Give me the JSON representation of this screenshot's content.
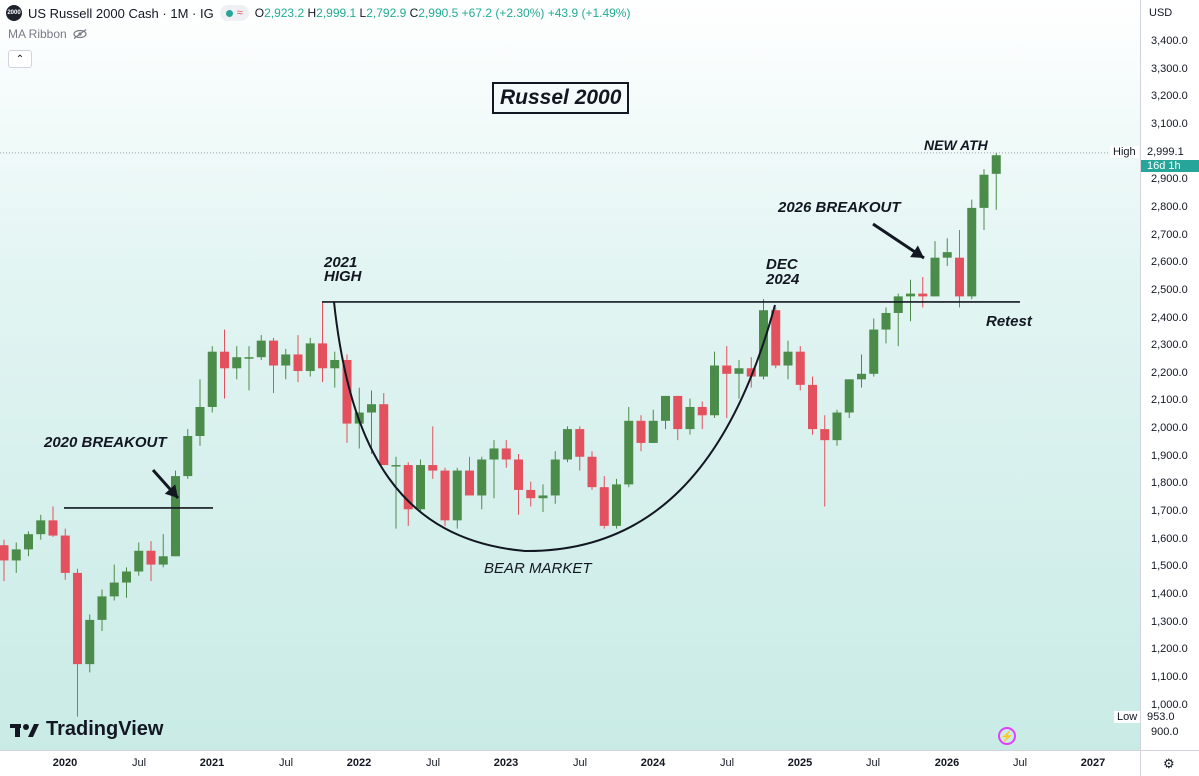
{
  "header": {
    "symbol_badge": "2000",
    "title": "US Russell 2000 Cash · 1M · IG",
    "ohlc": {
      "o_label": "O",
      "o": "2,923.2",
      "h_label": "H",
      "h": "2,999.1",
      "l_label": "L",
      "l": "2,792.9",
      "c_label": "C",
      "c": "2,990.5",
      "change": "+67.2 (+2.30%)",
      "change2": "+43.9 (+1.49%)"
    },
    "ma_ribbon": "MA Ribbon"
  },
  "price_axis": {
    "currency": "USD",
    "ticks": [
      "3,400.0",
      "3,300.0",
      "3,200.0",
      "3,100.0",
      "3,000.0",
      "2,900.0",
      "2,800.0",
      "2,700.0",
      "2,600.0",
      "2,500.0",
      "2,400.0",
      "2,300.0",
      "2,200.0",
      "2,100.0",
      "2,000.0",
      "1,900.0",
      "1,800.0",
      "1,700.0",
      "1,600.0",
      "1,500.0",
      "1,400.0",
      "1,300.0",
      "1,200.0",
      "1,100.0",
      "1,000.0",
      "900.0"
    ],
    "high_tag": "High",
    "high_value": "2,999.1",
    "timer": "16d 1h",
    "low_tag": "Low",
    "low_value": "953.0"
  },
  "time_axis": {
    "ticks": [
      {
        "label": "2020",
        "year": true
      },
      {
        "label": "Jul",
        "year": false
      },
      {
        "label": "2021",
        "year": true
      },
      {
        "label": "Jul",
        "year": false
      },
      {
        "label": "2022",
        "year": true
      },
      {
        "label": "Jul",
        "year": false
      },
      {
        "label": "2023",
        "year": true
      },
      {
        "label": "Jul",
        "year": false
      },
      {
        "label": "2024",
        "year": true
      },
      {
        "label": "Jul",
        "year": false
      },
      {
        "label": "2025",
        "year": true
      },
      {
        "label": "Jul",
        "year": false
      },
      {
        "label": "2026",
        "year": true
      },
      {
        "label": "Jul",
        "year": false
      },
      {
        "label": "2027",
        "year": true
      }
    ]
  },
  "annotations": {
    "title": "Russel 2000",
    "breakout_2020": "2020 BREAKOUT",
    "high_2021_line1": "2021",
    "high_2021_line2": "HIGH",
    "dec_2024_line1": "DEC",
    "dec_2024_line2": "2024",
    "breakout_2026": "2026 BREAKOUT",
    "new_ath": "NEW ATH",
    "retest": "Retest",
    "bear_market": "BEAR MARKET"
  },
  "branding": {
    "logo_text": "TradingView"
  },
  "colors": {
    "up": "#4c8c4a",
    "down": "#e2515d",
    "accent": "#26a69a"
  },
  "chart_data": {
    "type": "candlestick",
    "interval": "1M",
    "ylim": [
      900,
      3460
    ],
    "levels": [
      {
        "name": "2020 breakout level",
        "y": 1715
      },
      {
        "name": "2021 high level",
        "y": 2460
      }
    ],
    "candles": [
      {
        "t": "2019-09",
        "o": 1580,
        "h": 1600,
        "l": 1450,
        "c": 1525
      },
      {
        "t": "2019-10",
        "o": 1525,
        "h": 1590,
        "l": 1480,
        "c": 1565
      },
      {
        "t": "2019-11",
        "o": 1565,
        "h": 1630,
        "l": 1540,
        "c": 1620
      },
      {
        "t": "2019-12",
        "o": 1620,
        "h": 1690,
        "l": 1600,
        "c": 1670
      },
      {
        "t": "2020-01",
        "o": 1670,
        "h": 1720,
        "l": 1610,
        "c": 1615
      },
      {
        "t": "2020-02",
        "o": 1615,
        "h": 1640,
        "l": 1455,
        "c": 1480
      },
      {
        "t": "2020-03",
        "o": 1480,
        "h": 1495,
        "l": 960,
        "c": 1150
      },
      {
        "t": "2020-04",
        "o": 1150,
        "h": 1330,
        "l": 1120,
        "c": 1310
      },
      {
        "t": "2020-05",
        "o": 1310,
        "h": 1420,
        "l": 1270,
        "c": 1395
      },
      {
        "t": "2020-06",
        "o": 1395,
        "h": 1510,
        "l": 1380,
        "c": 1445
      },
      {
        "t": "2020-07",
        "o": 1445,
        "h": 1500,
        "l": 1390,
        "c": 1485
      },
      {
        "t": "2020-08",
        "o": 1485,
        "h": 1590,
        "l": 1470,
        "c": 1560
      },
      {
        "t": "2020-09",
        "o": 1560,
        "h": 1595,
        "l": 1450,
        "c": 1510
      },
      {
        "t": "2020-10",
        "o": 1510,
        "h": 1620,
        "l": 1500,
        "c": 1540
      },
      {
        "t": "2020-11",
        "o": 1540,
        "h": 1850,
        "l": 1540,
        "c": 1830
      },
      {
        "t": "2020-12",
        "o": 1830,
        "h": 2000,
        "l": 1820,
        "c": 1975
      },
      {
        "t": "2021-01",
        "o": 1975,
        "h": 2180,
        "l": 1940,
        "c": 2080
      },
      {
        "t": "2021-02",
        "o": 2080,
        "h": 2300,
        "l": 2060,
        "c": 2280
      },
      {
        "t": "2021-03",
        "o": 2280,
        "h": 2360,
        "l": 2110,
        "c": 2220
      },
      {
        "t": "2021-04",
        "o": 2220,
        "h": 2300,
        "l": 2180,
        "c": 2260
      },
      {
        "t": "2021-05",
        "o": 2260,
        "h": 2300,
        "l": 2140,
        "c": 2260
      },
      {
        "t": "2021-06",
        "o": 2260,
        "h": 2340,
        "l": 2250,
        "c": 2320
      },
      {
        "t": "2021-07",
        "o": 2320,
        "h": 2330,
        "l": 2130,
        "c": 2230
      },
      {
        "t": "2021-08",
        "o": 2230,
        "h": 2290,
        "l": 2180,
        "c": 2270
      },
      {
        "t": "2021-09",
        "o": 2270,
        "h": 2340,
        "l": 2170,
        "c": 2210
      },
      {
        "t": "2021-10",
        "o": 2210,
        "h": 2330,
        "l": 2190,
        "c": 2310
      },
      {
        "t": "2021-11",
        "o": 2310,
        "h": 2460,
        "l": 2170,
        "c": 2220
      },
      {
        "t": "2021-12",
        "o": 2220,
        "h": 2280,
        "l": 2150,
        "c": 2250
      },
      {
        "t": "2022-01",
        "o": 2250,
        "h": 2270,
        "l": 1950,
        "c": 2020
      },
      {
        "t": "2022-02",
        "o": 2020,
        "h": 2150,
        "l": 1930,
        "c": 2060
      },
      {
        "t": "2022-03",
        "o": 2060,
        "h": 2140,
        "l": 1910,
        "c": 2090
      },
      {
        "t": "2022-04",
        "o": 2090,
        "h": 2130,
        "l": 1870,
        "c": 1870
      },
      {
        "t": "2022-05",
        "o": 1870,
        "h": 1900,
        "l": 1640,
        "c": 1870
      },
      {
        "t": "2022-06",
        "o": 1870,
        "h": 1880,
        "l": 1650,
        "c": 1710
      },
      {
        "t": "2022-07",
        "o": 1710,
        "h": 1890,
        "l": 1700,
        "c": 1870
      },
      {
        "t": "2022-08",
        "o": 1870,
        "h": 2010,
        "l": 1820,
        "c": 1850
      },
      {
        "t": "2022-09",
        "o": 1850,
        "h": 1860,
        "l": 1650,
        "c": 1670
      },
      {
        "t": "2022-10",
        "o": 1670,
        "h": 1860,
        "l": 1640,
        "c": 1850
      },
      {
        "t": "2022-11",
        "o": 1850,
        "h": 1900,
        "l": 1780,
        "c": 1760
      },
      {
        "t": "2022-12",
        "o": 1760,
        "h": 1900,
        "l": 1710,
        "c": 1890
      },
      {
        "t": "2023-01",
        "o": 1890,
        "h": 1960,
        "l": 1750,
        "c": 1930
      },
      {
        "t": "2023-02",
        "o": 1930,
        "h": 1960,
        "l": 1860,
        "c": 1890
      },
      {
        "t": "2023-03",
        "o": 1890,
        "h": 1910,
        "l": 1690,
        "c": 1780
      },
      {
        "t": "2023-04",
        "o": 1780,
        "h": 1810,
        "l": 1720,
        "c": 1750
      },
      {
        "t": "2023-05",
        "o": 1750,
        "h": 1800,
        "l": 1700,
        "c": 1760
      },
      {
        "t": "2023-06",
        "o": 1760,
        "h": 1920,
        "l": 1730,
        "c": 1890
      },
      {
        "t": "2023-07",
        "o": 1890,
        "h": 2010,
        "l": 1880,
        "c": 2000
      },
      {
        "t": "2023-08",
        "o": 2000,
        "h": 2010,
        "l": 1850,
        "c": 1900
      },
      {
        "t": "2023-09",
        "o": 1900,
        "h": 1920,
        "l": 1780,
        "c": 1790
      },
      {
        "t": "2023-10",
        "o": 1790,
        "h": 1830,
        "l": 1640,
        "c": 1650
      },
      {
        "t": "2023-11",
        "o": 1650,
        "h": 1820,
        "l": 1640,
        "c": 1800
      },
      {
        "t": "2023-12",
        "o": 1800,
        "h": 2080,
        "l": 1790,
        "c": 2030
      },
      {
        "t": "2024-01",
        "o": 2030,
        "h": 2050,
        "l": 1920,
        "c": 1950
      },
      {
        "t": "2024-02",
        "o": 1950,
        "h": 2070,
        "l": 1950,
        "c": 2030
      },
      {
        "t": "2024-03",
        "o": 2030,
        "h": 2120,
        "l": 2000,
        "c": 2120
      },
      {
        "t": "2024-04",
        "o": 2120,
        "h": 2120,
        "l": 1960,
        "c": 2000
      },
      {
        "t": "2024-05",
        "o": 2000,
        "h": 2110,
        "l": 1980,
        "c": 2080
      },
      {
        "t": "2024-06",
        "o": 2080,
        "h": 2100,
        "l": 2000,
        "c": 2050
      },
      {
        "t": "2024-07",
        "o": 2050,
        "h": 2280,
        "l": 2040,
        "c": 2230
      },
      {
        "t": "2024-08",
        "o": 2230,
        "h": 2300,
        "l": 2040,
        "c": 2200
      },
      {
        "t": "2024-09",
        "o": 2200,
        "h": 2250,
        "l": 2110,
        "c": 2220
      },
      {
        "t": "2024-10",
        "o": 2220,
        "h": 2260,
        "l": 2150,
        "c": 2190
      },
      {
        "t": "2024-11",
        "o": 2190,
        "h": 2470,
        "l": 2180,
        "c": 2430
      },
      {
        "t": "2024-12",
        "o": 2430,
        "h": 2440,
        "l": 2220,
        "c": 2230
      },
      {
        "t": "2025-01",
        "o": 2230,
        "h": 2320,
        "l": 2180,
        "c": 2280
      },
      {
        "t": "2025-02",
        "o": 2280,
        "h": 2300,
        "l": 2140,
        "c": 2160
      },
      {
        "t": "2025-03",
        "o": 2160,
        "h": 2190,
        "l": 1980,
        "c": 2000
      },
      {
        "t": "2025-04",
        "o": 2000,
        "h": 2050,
        "l": 1720,
        "c": 1960
      },
      {
        "t": "2025-05",
        "o": 1960,
        "h": 2070,
        "l": 1940,
        "c": 2060
      },
      {
        "t": "2025-06",
        "o": 2060,
        "h": 2180,
        "l": 2040,
        "c": 2180
      },
      {
        "t": "2025-07",
        "o": 2180,
        "h": 2270,
        "l": 2150,
        "c": 2200
      },
      {
        "t": "2025-08",
        "o": 2200,
        "h": 2400,
        "l": 2190,
        "c": 2360
      },
      {
        "t": "2025-09",
        "o": 2360,
        "h": 2440,
        "l": 2310,
        "c": 2420
      },
      {
        "t": "2025-10",
        "o": 2420,
        "h": 2490,
        "l": 2300,
        "c": 2480
      },
      {
        "t": "2025-11",
        "o": 2480,
        "h": 2540,
        "l": 2390,
        "c": 2490
      },
      {
        "t": "2025-12",
        "o": 2490,
        "h": 2550,
        "l": 2440,
        "c": 2480
      },
      {
        "t": "2026-01",
        "o": 2480,
        "h": 2680,
        "l": 2480,
        "c": 2620
      },
      {
        "t": "2026-02",
        "o": 2620,
        "h": 2690,
        "l": 2590,
        "c": 2640
      },
      {
        "t": "2026-03",
        "o": 2620,
        "h": 2720,
        "l": 2440,
        "c": 2480
      },
      {
        "t": "2026-04",
        "o": 2480,
        "h": 2830,
        "l": 2470,
        "c": 2800
      },
      {
        "t": "2026-05",
        "o": 2800,
        "h": 2940,
        "l": 2720,
        "c": 2920
      },
      {
        "t": "2026-06",
        "o": 2923.2,
        "h": 2999.1,
        "l": 2792.9,
        "c": 2990.5
      }
    ]
  }
}
